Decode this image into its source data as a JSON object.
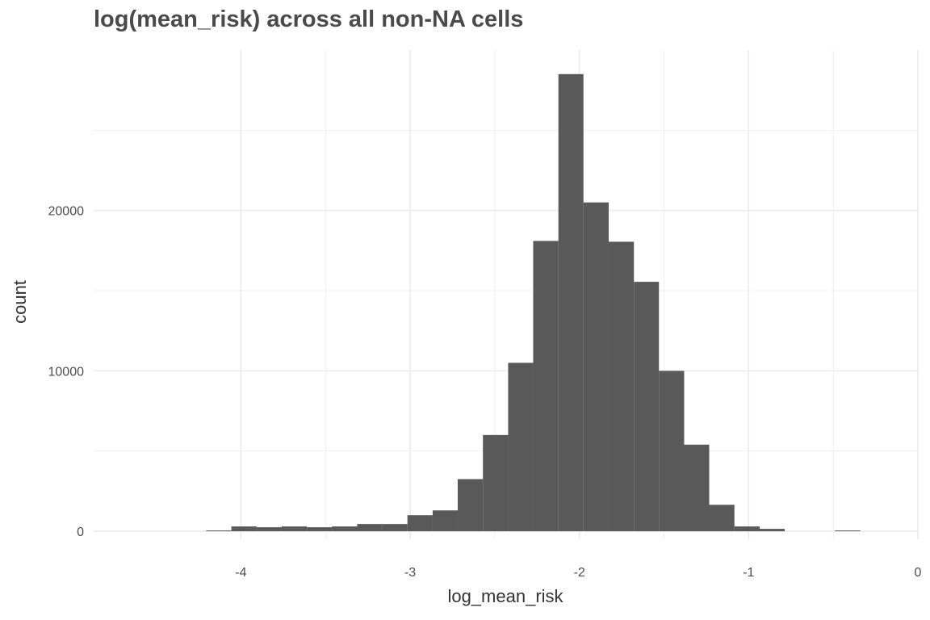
{
  "chart_data": {
    "type": "bar",
    "title": "log(mean_risk) across all non-NA cells",
    "xlabel": "log_mean_risk",
    "ylabel": "count",
    "xlim": [
      -4.87,
      0
    ],
    "ylim": [
      -500,
      30000
    ],
    "x_ticks": [
      {
        "value": -4,
        "label": "-4"
      },
      {
        "value": -3,
        "label": "-3"
      },
      {
        "value": -2,
        "label": "-2"
      },
      {
        "value": -1,
        "label": "-1"
      },
      {
        "value": 0,
        "label": "0"
      }
    ],
    "y_ticks": [
      {
        "value": 0,
        "label": "0"
      },
      {
        "value": 10000,
        "label": "10000"
      },
      {
        "value": 20000,
        "label": "20000"
      }
    ],
    "grid": true,
    "bar_color": "#595959",
    "grid_color": "#ebebeb",
    "bins": [
      {
        "x0": -4.205,
        "x1": -4.056,
        "count": 50
      },
      {
        "x0": -4.056,
        "x1": -3.907,
        "count": 300
      },
      {
        "x0": -3.907,
        "x1": -3.759,
        "count": 250
      },
      {
        "x0": -3.759,
        "x1": -3.61,
        "count": 300
      },
      {
        "x0": -3.61,
        "x1": -3.462,
        "count": 250
      },
      {
        "x0": -3.462,
        "x1": -3.313,
        "count": 300
      },
      {
        "x0": -3.313,
        "x1": -3.164,
        "count": 450
      },
      {
        "x0": -3.164,
        "x1": -3.016,
        "count": 450
      },
      {
        "x0": -3.016,
        "x1": -2.867,
        "count": 1000
      },
      {
        "x0": -2.867,
        "x1": -2.719,
        "count": 1300
      },
      {
        "x0": -2.719,
        "x1": -2.57,
        "count": 3250
      },
      {
        "x0": -2.57,
        "x1": -2.421,
        "count": 6000
      },
      {
        "x0": -2.421,
        "x1": -2.273,
        "count": 10500
      },
      {
        "x0": -2.273,
        "x1": -2.124,
        "count": 18100
      },
      {
        "x0": -2.124,
        "x1": -1.976,
        "count": 28500
      },
      {
        "x0": -1.976,
        "x1": -1.827,
        "count": 20500
      },
      {
        "x0": -1.827,
        "x1": -1.678,
        "count": 18050
      },
      {
        "x0": -1.678,
        "x1": -1.53,
        "count": 15550
      },
      {
        "x0": -1.53,
        "x1": -1.381,
        "count": 10000
      },
      {
        "x0": -1.381,
        "x1": -1.233,
        "count": 5400
      },
      {
        "x0": -1.233,
        "x1": -1.084,
        "count": 1650
      },
      {
        "x0": -1.084,
        "x1": -0.935,
        "count": 300
      },
      {
        "x0": -0.935,
        "x1": -0.787,
        "count": 150
      },
      {
        "x0": -0.787,
        "x1": -0.638,
        "count": 0
      },
      {
        "x0": -0.638,
        "x1": -0.49,
        "count": 0
      },
      {
        "x0": -0.49,
        "x1": -0.341,
        "count": 50
      }
    ]
  }
}
